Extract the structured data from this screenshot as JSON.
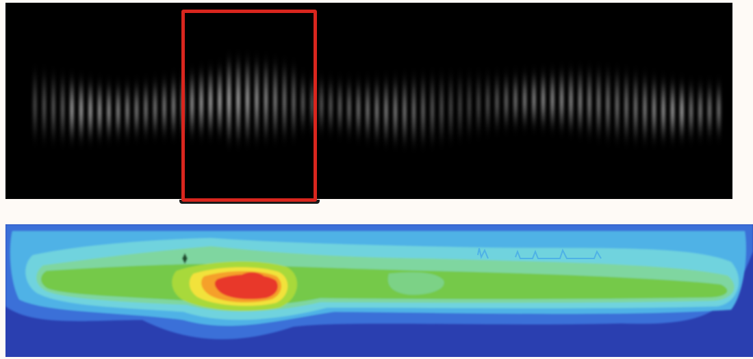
{
  "images": {
    "top": {
      "kind": "grayscale-fringe-pattern",
      "background": "#000000"
    },
    "bottom": {
      "kind": "contour-heatmap",
      "palette": [
        "#2a3fb0",
        "#3a6fd8",
        "#4fb2e6",
        "#6fd3de",
        "#7fd6a0",
        "#74c94a",
        "#a8d93a",
        "#f2e23a",
        "#f5a02a",
        "#e8392b"
      ]
    }
  },
  "highlight": {
    "color": "#d9261e"
  }
}
